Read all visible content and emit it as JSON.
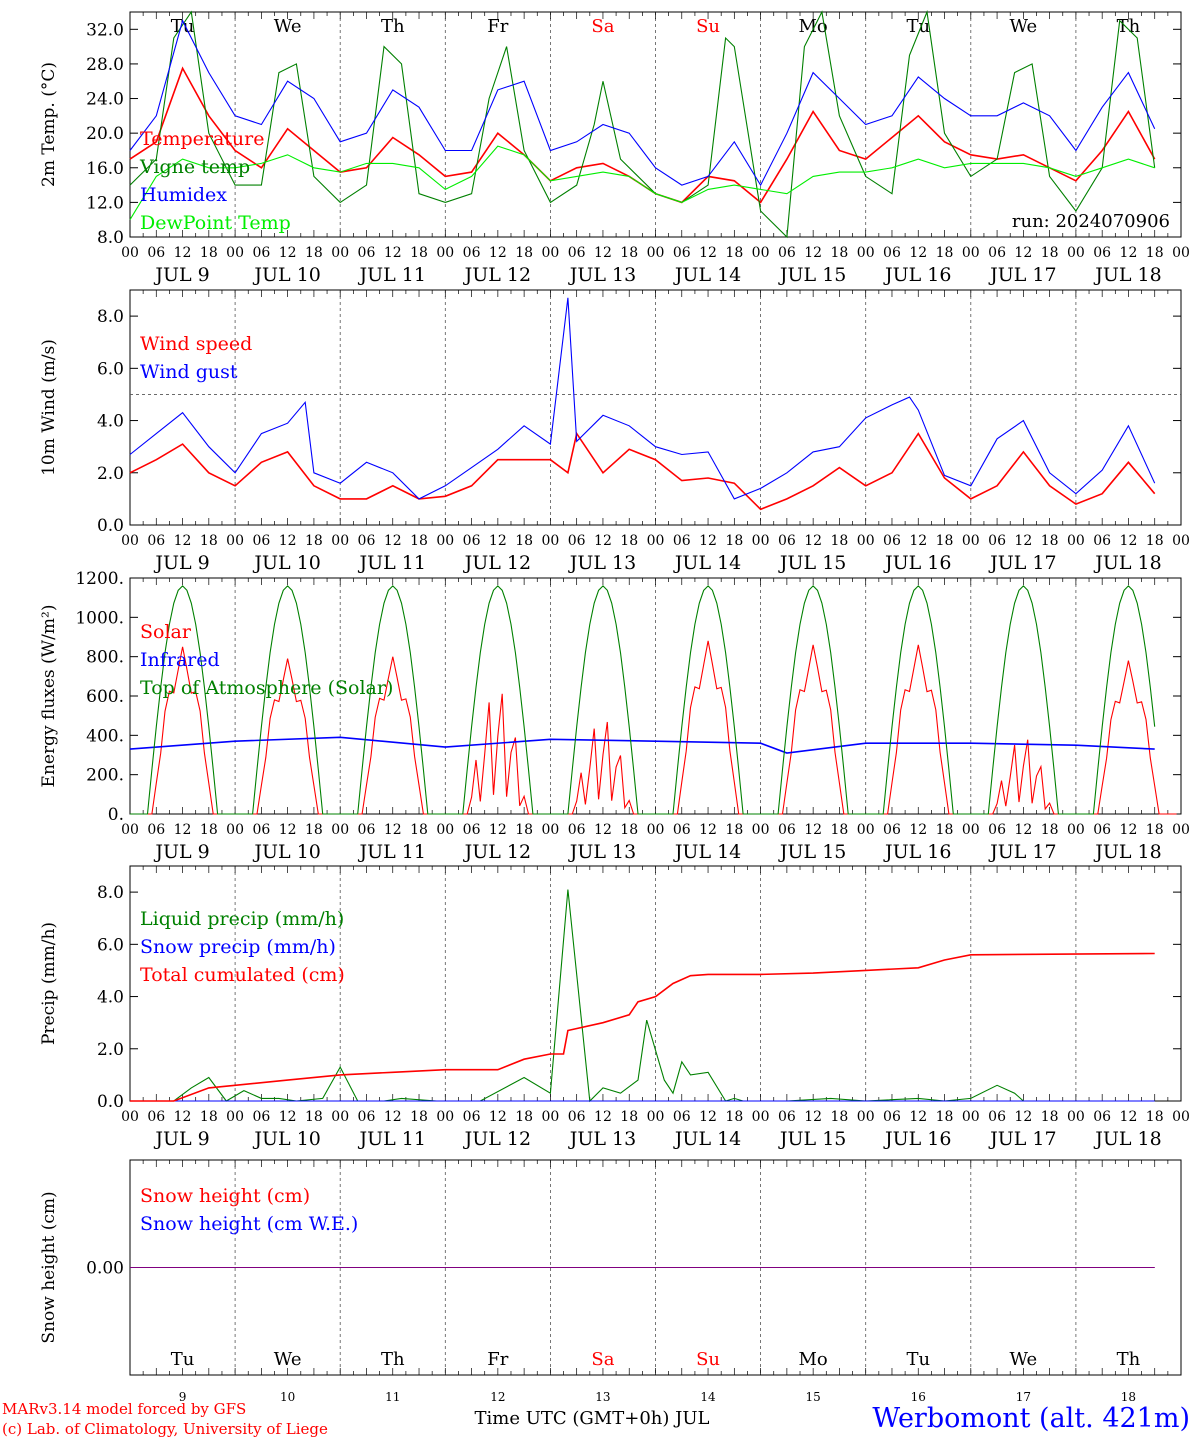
{
  "footer": {
    "credit1": "MARv3.14 model forced by GFS",
    "credit2": "(c) Lab. of Climatology, University of Liege",
    "xlabel": "Time UTC (GMT+0h) JUL",
    "station": "Werbomont (alt. 421m)"
  },
  "colors": {
    "red": "#ff0000",
    "green": "#008000",
    "blue": "#0000ff",
    "lightgreen": "#00ee00",
    "purple": "#800080",
    "weekend": "#ff0000"
  },
  "days": {
    "weekday": [
      "Tu",
      "We",
      "Th",
      "Fr",
      "Sa",
      "Su",
      "Mo",
      "Tu",
      "We",
      "Th"
    ],
    "weekend": [
      false,
      false,
      false,
      false,
      true,
      true,
      false,
      false,
      false,
      false
    ],
    "date_labels": [
      "JUL  9",
      "JUL 10",
      "JUL 11",
      "JUL 12",
      "JUL 13",
      "JUL 14",
      "JUL 15",
      "JUL 16",
      "JUL 17",
      "JUL 18"
    ],
    "day_numbers": [
      "9",
      "10",
      "11",
      "12",
      "13",
      "14",
      "15",
      "16",
      "17",
      "18"
    ],
    "hour_ticks": [
      "00",
      "06",
      "12",
      "18"
    ],
    "end_tick": "00"
  },
  "chart_data": [
    {
      "type": "line",
      "ylabel": "2m Temp. (°C)",
      "ylim": [
        8,
        34
      ],
      "yticks": [
        "8.0",
        "12.0",
        "16.0",
        "20.0",
        "24.0",
        "28.0",
        "32.0"
      ],
      "annotation": "run: 2024070906",
      "x_unit": "hours from JUL 9 00 UTC",
      "series": [
        {
          "name": "Temperature",
          "color": "red",
          "x": [
            0,
            6,
            12,
            18,
            24,
            30,
            36,
            42,
            48,
            54,
            60,
            66,
            72,
            78,
            84,
            90,
            96,
            102,
            108,
            114,
            120,
            126,
            132,
            138,
            144,
            150,
            156,
            162,
            168,
            174,
            180,
            186,
            192,
            198,
            204,
            210,
            216,
            222,
            228,
            234
          ],
          "y": [
            17,
            19,
            27.5,
            22,
            18,
            16,
            20.5,
            18,
            15.5,
            16,
            19.5,
            17.5,
            15,
            15.5,
            20,
            17.5,
            14.5,
            16,
            16.5,
            15,
            13,
            12,
            15,
            14.5,
            12,
            17,
            22.5,
            18,
            17,
            19.5,
            22,
            19,
            17.5,
            17,
            17.5,
            16,
            14.5,
            18,
            22.5,
            17
          ]
        },
        {
          "name": "Vigne temp",
          "color": "green",
          "x": [
            0,
            6,
            10,
            14,
            18,
            24,
            30,
            34,
            38,
            42,
            48,
            54,
            58,
            62,
            66,
            72,
            78,
            82,
            86,
            90,
            96,
            102,
            106,
            108,
            112,
            120,
            126,
            132,
            136,
            138,
            144,
            150,
            154,
            158,
            162,
            168,
            174,
            178,
            182,
            186,
            192,
            198,
            202,
            206,
            210,
            216,
            222,
            226,
            230,
            234
          ],
          "y": [
            14,
            17,
            31,
            34,
            20,
            14,
            14,
            27,
            28,
            15,
            12,
            14,
            30,
            28,
            13,
            12,
            13,
            24,
            30,
            18,
            12,
            14,
            21,
            26,
            17,
            13,
            12,
            14,
            31,
            30,
            11,
            8,
            30,
            34,
            22,
            15,
            13,
            29,
            34,
            20,
            15,
            17,
            27,
            28,
            15,
            11,
            16,
            33,
            31,
            16
          ]
        },
        {
          "name": "Humidex",
          "color": "blue",
          "x": [
            0,
            6,
            12,
            18,
            24,
            30,
            36,
            42,
            48,
            54,
            60,
            66,
            72,
            78,
            84,
            90,
            96,
            102,
            108,
            114,
            120,
            126,
            132,
            138,
            144,
            150,
            156,
            162,
            168,
            174,
            180,
            186,
            192,
            198,
            204,
            210,
            216,
            222,
            228,
            234
          ],
          "y": [
            18,
            22,
            33,
            27,
            22,
            21,
            26,
            24,
            19,
            20,
            25,
            23,
            18,
            18,
            25,
            26,
            18,
            19,
            21,
            20,
            16,
            14,
            15,
            19,
            14,
            20,
            27,
            24,
            21,
            22,
            26.5,
            24,
            22,
            22,
            23.5,
            22,
            18,
            23,
            27,
            20.5
          ]
        },
        {
          "name": "DewPoint Temp",
          "color": "lightgreen",
          "x": [
            0,
            6,
            12,
            18,
            24,
            30,
            36,
            42,
            48,
            54,
            60,
            66,
            72,
            78,
            84,
            90,
            96,
            102,
            108,
            114,
            120,
            126,
            132,
            138,
            144,
            150,
            156,
            162,
            168,
            174,
            180,
            186,
            192,
            198,
            204,
            210,
            216,
            222,
            228,
            234
          ],
          "y": [
            10,
            15,
            17,
            16,
            16,
            16.5,
            17.5,
            16,
            15.5,
            16.5,
            16.5,
            16,
            13.5,
            15,
            18.5,
            17.5,
            14.5,
            15,
            15.5,
            15,
            13,
            12,
            13.5,
            14,
            13.5,
            13,
            15,
            15.5,
            15.5,
            16,
            17,
            16,
            16.5,
            16.5,
            16.5,
            16,
            15,
            16,
            17,
            16
          ]
        }
      ]
    },
    {
      "type": "line",
      "ylabel": "10m Wind (m/s)",
      "ylim": [
        0,
        9
      ],
      "yticks": [
        "0.0",
        "2.0",
        "4.0",
        "6.0",
        "8.0"
      ],
      "ref_line": 5,
      "series": [
        {
          "name": "Wind speed",
          "color": "red",
          "x": [
            0,
            6,
            12,
            18,
            24,
            30,
            36,
            42,
            48,
            54,
            60,
            66,
            72,
            78,
            84,
            90,
            96,
            100,
            102,
            108,
            114,
            120,
            126,
            132,
            138,
            144,
            150,
            156,
            162,
            168,
            174,
            180,
            186,
            192,
            198,
            204,
            210,
            216,
            222,
            228,
            234
          ],
          "y": [
            2,
            2.5,
            3.1,
            2,
            1.5,
            2.4,
            2.8,
            1.5,
            1,
            1,
            1.5,
            1,
            1.1,
            1.5,
            2.5,
            2.5,
            2.5,
            2,
            3.5,
            2,
            2.9,
            2.5,
            1.7,
            1.8,
            1.6,
            0.6,
            1,
            1.5,
            2.2,
            1.5,
            2,
            3.5,
            1.8,
            1,
            1.5,
            2.8,
            1.5,
            0.8,
            1.2,
            2.4,
            1.2
          ]
        },
        {
          "name": "Wind gust",
          "color": "blue",
          "x": [
            0,
            6,
            12,
            18,
            24,
            30,
            36,
            40,
            42,
            48,
            54,
            60,
            66,
            72,
            78,
            84,
            90,
            96,
            100,
            102,
            108,
            114,
            120,
            126,
            132,
            138,
            144,
            150,
            156,
            162,
            168,
            174,
            178,
            180,
            186,
            192,
            198,
            204,
            210,
            216,
            222,
            228,
            234
          ],
          "y": [
            2.7,
            3.5,
            4.3,
            3,
            2,
            3.5,
            3.9,
            4.7,
            2,
            1.6,
            2.4,
            2,
            1,
            1.5,
            2.2,
            2.9,
            3.8,
            3.1,
            8.7,
            3.2,
            4.2,
            3.8,
            3,
            2.7,
            2.8,
            1,
            1.4,
            2,
            2.8,
            3,
            4.1,
            4.6,
            4.9,
            4.4,
            1.9,
            1.5,
            3.3,
            4,
            2,
            1.2,
            2.1,
            3.8,
            1.6
          ]
        }
      ]
    },
    {
      "type": "line",
      "ylabel": "Energy fluxes (W/m²)",
      "ylim": [
        0,
        1200
      ],
      "yticks": [
        "0.",
        "200.",
        "400.",
        "600.",
        "800.",
        "1000.",
        "1200."
      ],
      "series": [
        {
          "name": "Solar",
          "color": "red",
          "peaks": [
            850,
            790,
            800,
            680,
            520,
            880,
            860,
            860,
            420,
            780
          ]
        },
        {
          "name": "Infrared",
          "color": "blue",
          "x": [
            0,
            24,
            48,
            72,
            96,
            120,
            144,
            150,
            168,
            192,
            216,
            234
          ],
          "y": [
            330,
            370,
            390,
            340,
            380,
            370,
            360,
            310,
            360,
            360,
            350,
            330
          ]
        },
        {
          "name": "Top of Atmosphere (Solar)",
          "color": "green",
          "peak": 1160
        }
      ]
    },
    {
      "type": "line",
      "ylabel": "Precip (mm/h)",
      "ylim": [
        0,
        9
      ],
      "yticks": [
        "0.0",
        "2.0",
        "4.0",
        "6.0",
        "8.0"
      ],
      "series": [
        {
          "name": "Liquid precip (mm/h)",
          "color": "green",
          "x": [
            0,
            10,
            14,
            18,
            22,
            26,
            30,
            34,
            38,
            44,
            48,
            52,
            58,
            62,
            70,
            80,
            90,
            96,
            100,
            105,
            108,
            112,
            116,
            118,
            122,
            124,
            126,
            128,
            132,
            136,
            138,
            140,
            146,
            150,
            160,
            168,
            180,
            186,
            192,
            198,
            202,
            204,
            210,
            216,
            234
          ],
          "y": [
            0,
            0,
            0.5,
            0.9,
            0,
            0.4,
            0.1,
            0.1,
            0,
            0.1,
            1.3,
            0,
            0,
            0.1,
            0,
            0,
            0.9,
            0.3,
            8.1,
            0,
            0.5,
            0.3,
            0.8,
            3.1,
            0.8,
            0.3,
            1.5,
            1,
            1.1,
            0,
            0.1,
            0,
            0,
            0,
            0.1,
            0,
            0.1,
            0,
            0.1,
            0.6,
            0.3,
            0,
            0,
            0,
            0
          ]
        },
        {
          "name": "Snow precip (mm/h)",
          "color": "blue",
          "x": [
            0,
            234
          ],
          "y": [
            0,
            0
          ]
        },
        {
          "name": "Total cumulated (cm)",
          "color": "red",
          "x": [
            0,
            10,
            18,
            24,
            36,
            48,
            60,
            72,
            84,
            90,
            96,
            99,
            100,
            108,
            114,
            116,
            120,
            124,
            128,
            132,
            144,
            156,
            168,
            180,
            186,
            192,
            234
          ],
          "y": [
            0,
            0,
            0.5,
            0.6,
            0.8,
            1,
            1.1,
            1.2,
            1.2,
            1.6,
            1.8,
            1.8,
            2.7,
            3,
            3.3,
            3.8,
            4,
            4.5,
            4.8,
            4.85,
            4.85,
            4.9,
            5,
            5.1,
            5.4,
            5.6,
            5.65
          ]
        }
      ]
    },
    {
      "type": "line",
      "ylabel": "Snow height (cm)",
      "ylim": [
        -1,
        1
      ],
      "yticks": [
        "0.00"
      ],
      "series": [
        {
          "name": "Snow height (cm)",
          "color": "red",
          "x": [
            0,
            234
          ],
          "y": [
            0,
            0
          ]
        },
        {
          "name": "Snow height (cm W.E.)",
          "color": "blue",
          "x": [
            0,
            234
          ],
          "y": [
            0,
            0
          ]
        }
      ]
    }
  ]
}
